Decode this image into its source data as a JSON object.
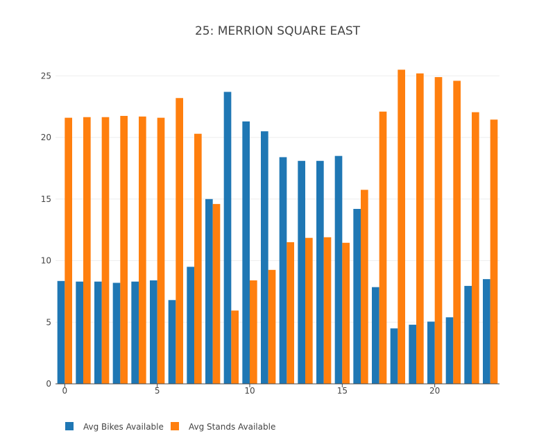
{
  "chart_data": {
    "type": "bar",
    "title": "25: MERRION SQUARE EAST",
    "xlabel": "",
    "ylabel": "",
    "x": [
      0,
      1,
      2,
      3,
      4,
      5,
      6,
      7,
      8,
      9,
      10,
      11,
      12,
      13,
      14,
      15,
      16,
      17,
      18,
      19,
      20,
      21,
      22,
      23
    ],
    "x_ticks": [
      0,
      5,
      10,
      15,
      20
    ],
    "x_tick_labels": [
      "0",
      "5",
      "10",
      "15",
      "20"
    ],
    "y_ticks": [
      0,
      5,
      10,
      15,
      20,
      25
    ],
    "y_tick_labels": [
      "0",
      "5",
      "10",
      "15",
      "20",
      "25"
    ],
    "xlim": [
      -0.5,
      23.5
    ],
    "ylim": [
      0,
      26.2
    ],
    "grid": true,
    "legend_position": "bottom-left, horizontal",
    "series": [
      {
        "name": "Avg Bikes Available",
        "color": "#1f77b4",
        "values": [
          8.35,
          8.3,
          8.3,
          8.2,
          8.3,
          8.4,
          6.8,
          9.5,
          15.0,
          23.7,
          21.3,
          20.5,
          18.4,
          18.1,
          18.1,
          18.5,
          14.2,
          7.85,
          4.5,
          4.8,
          5.05,
          5.4,
          7.95,
          8.5
        ]
      },
      {
        "name": "Avg Stands Available",
        "color": "#ff7f0e",
        "values": [
          21.6,
          21.65,
          21.65,
          21.75,
          21.7,
          21.6,
          23.2,
          20.3,
          14.6,
          5.95,
          8.4,
          9.25,
          11.5,
          11.85,
          11.9,
          11.45,
          15.75,
          22.1,
          25.5,
          25.2,
          24.9,
          24.6,
          22.05,
          21.45
        ]
      }
    ]
  }
}
